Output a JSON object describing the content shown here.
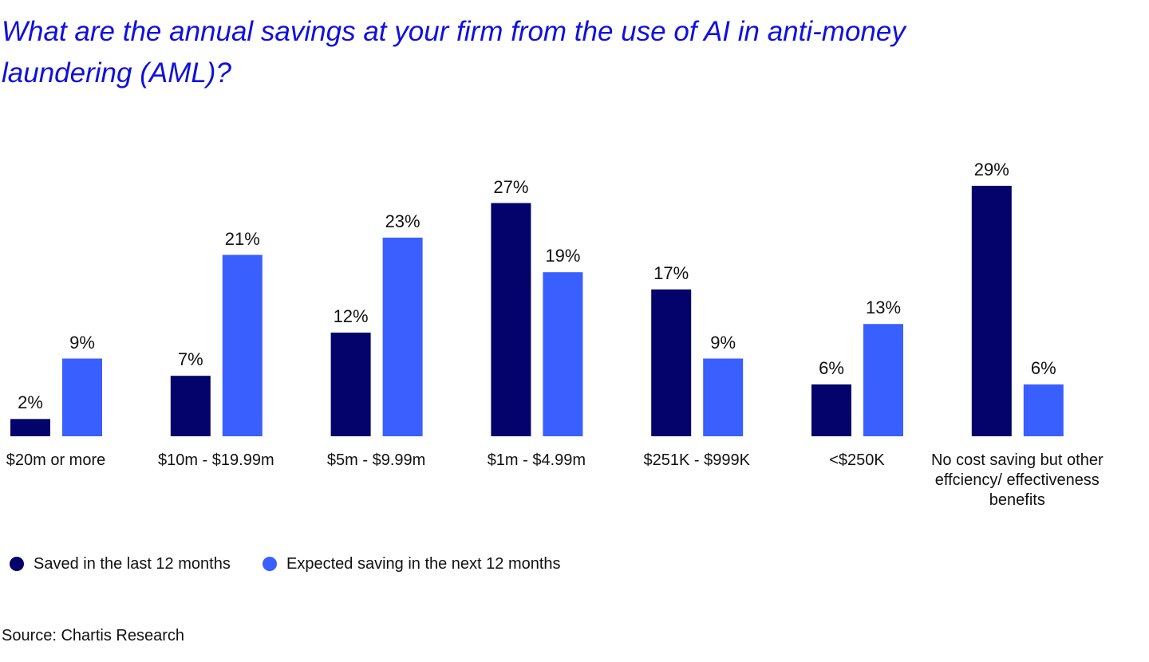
{
  "chart_data": {
    "type": "bar",
    "title": "What are the annual savings at your firm from the use of AI in anti-money laundering (AML)?",
    "categories": [
      "$20m or more",
      "$10m - $19.99m",
      "$5m - $9.99m",
      "$1m - $4.99m",
      "$251K - $999K",
      "<$250K",
      "No cost saving but other effciency/ effectiveness benefits"
    ],
    "series": [
      {
        "name": "Saved in the last 12 months",
        "color": "#03036b",
        "values": [
          2,
          7,
          12,
          27,
          17,
          6,
          29
        ],
        "value_labels": [
          "2%",
          "7%",
          "12%",
          "27%",
          "17%",
          "6%",
          "29%"
        ]
      },
      {
        "name": "Expected saving in the next 12 months",
        "color": "#3a5fff",
        "values": [
          9,
          21,
          23,
          19,
          9,
          13,
          6
        ],
        "value_labels": [
          "9%",
          "21%",
          "23%",
          "19%",
          "9%",
          "13%",
          "6%"
        ]
      }
    ],
    "source": "Source: Chartis Research"
  }
}
